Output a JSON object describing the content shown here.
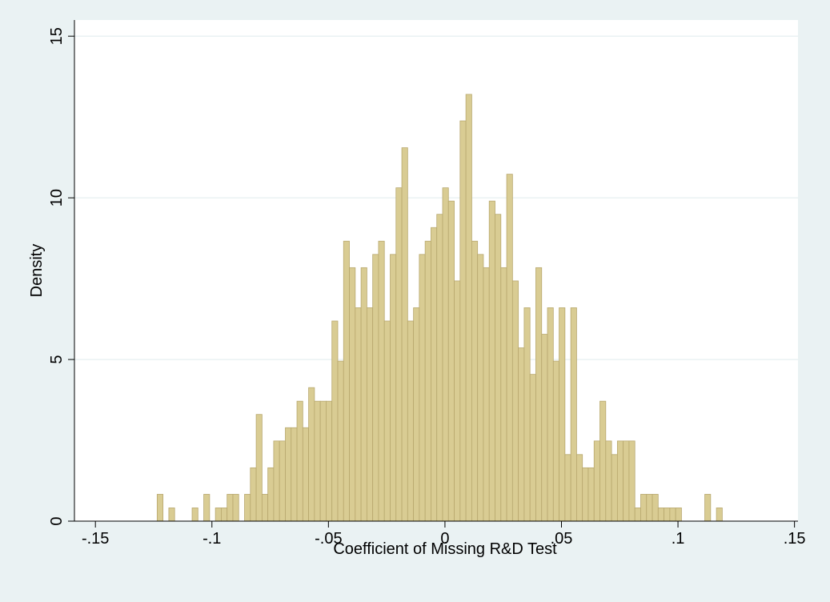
{
  "chart_data": {
    "type": "histogram",
    "x_label": "Coefficient of Missing R&D Test",
    "y_label": "Density",
    "bins": [
      -0.1235,
      -0.121,
      -0.1185,
      -0.116,
      -0.1135,
      -0.111,
      -0.1085,
      -0.106,
      -0.1035,
      -0.101,
      -0.0985,
      -0.096,
      -0.0935,
      -0.091,
      -0.0885,
      -0.086,
      -0.0835,
      -0.081,
      -0.0785,
      -0.076,
      -0.0735,
      -0.071,
      -0.0685,
      -0.066,
      -0.0635,
      -0.061,
      -0.0585,
      -0.056,
      -0.0535,
      -0.051,
      -0.0485,
      -0.046,
      -0.0435,
      -0.041,
      -0.0385,
      -0.036,
      -0.0335,
      -0.031,
      -0.0285,
      -0.026,
      -0.0235,
      -0.021,
      -0.0185,
      -0.016,
      -0.0135,
      -0.011,
      -0.0085,
      -0.006,
      -0.0035,
      -0.001,
      0.0015,
      0.004,
      0.0065,
      0.009,
      0.0115,
      0.014,
      0.0165,
      0.019,
      0.0215,
      0.024,
      0.0265,
      0.029,
      0.0315,
      0.034,
      0.0365,
      0.039,
      0.0415,
      0.044,
      0.0465,
      0.049,
      0.0515,
      0.054,
      0.0565,
      0.059,
      0.0615,
      0.064,
      0.0665,
      0.069,
      0.0715,
      0.074,
      0.0765,
      0.079,
      0.0815,
      0.084,
      0.0865,
      0.089,
      0.0915,
      0.094,
      0.0965,
      0.099,
      0.1015,
      0.104,
      0.1065,
      0.109,
      0.1115,
      0.114,
      0.1165,
      0.119
    ],
    "values": [
      0.83,
      0,
      0.41,
      0,
      0,
      0,
      0.41,
      0,
      0.83,
      0,
      0.41,
      0.41,
      0.83,
      0.83,
      0,
      0.83,
      1.65,
      3.3,
      0.83,
      1.65,
      2.48,
      2.48,
      2.89,
      2.89,
      3.71,
      2.89,
      4.13,
      3.71,
      3.71,
      3.71,
      6.19,
      4.95,
      8.66,
      7.84,
      6.6,
      7.84,
      6.6,
      8.25,
      8.66,
      6.19,
      8.25,
      10.31,
      11.55,
      6.19,
      6.6,
      8.25,
      8.66,
      9.08,
      9.49,
      10.31,
      9.9,
      7.43,
      12.38,
      13.2,
      8.66,
      8.25,
      7.84,
      9.9,
      9.49,
      7.84,
      10.73,
      7.43,
      5.36,
      6.6,
      4.54,
      7.84,
      5.78,
      6.6,
      4.95,
      6.6,
      2.06,
      6.6,
      2.06,
      1.65,
      1.65,
      2.48,
      3.71,
      2.48,
      2.06,
      2.48,
      2.48,
      2.48,
      0.41,
      0.83,
      0.83,
      0.83,
      0.41,
      0.41,
      0.41,
      0.41,
      0,
      0,
      0,
      0,
      0.83,
      0,
      0.41
    ],
    "color": "#d9cc93",
    "edge_color": "#b8a86e",
    "xlim": [
      -0.159,
      0.1515
    ],
    "xticks": [
      {
        "value": -0.15,
        "label": "-.15"
      },
      {
        "value": -0.1,
        "label": "-.1"
      },
      {
        "value": -0.05,
        "label": "-.05"
      },
      0,
      {
        "value": 0.05,
        "label": ".05"
      },
      {
        "value": 0.1,
        "label": ".1"
      },
      {
        "value": 0.15,
        "label": ".15"
      }
    ],
    "ylim": [
      0,
      15.5
    ],
    "yticks": [
      0,
      5,
      10,
      15
    ],
    "grid": true
  }
}
